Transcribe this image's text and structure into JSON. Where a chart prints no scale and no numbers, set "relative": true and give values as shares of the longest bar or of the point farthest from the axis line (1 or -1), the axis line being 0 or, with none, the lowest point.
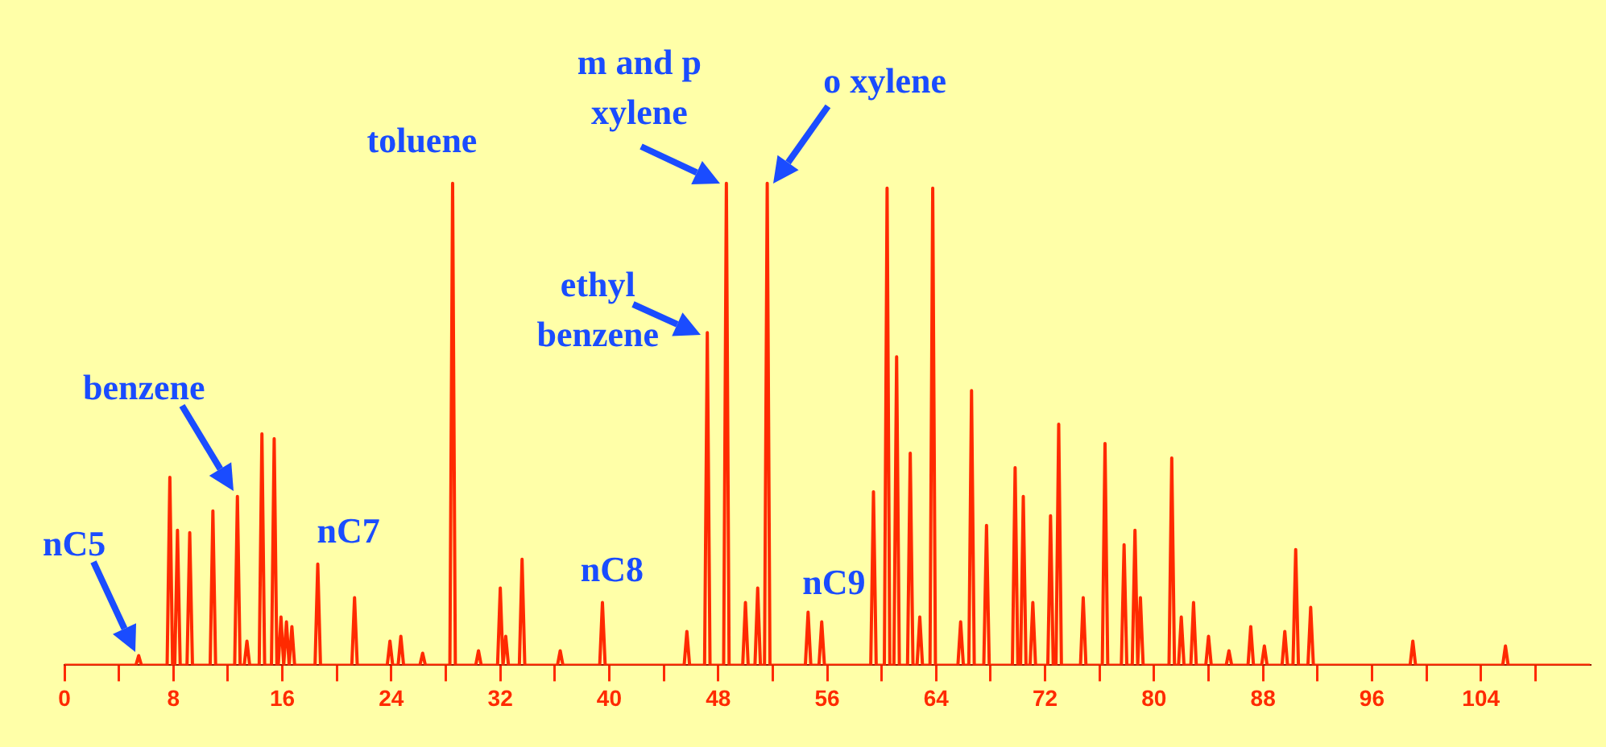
{
  "chart_data": {
    "type": "line",
    "relative": true,
    "color": "#ff2a00",
    "grid": false,
    "legend": false,
    "marker": "none",
    "line_style": "solid",
    "xlim": [
      0,
      112
    ],
    "xticks": [
      0,
      {
        "value": 4,
        "label": null
      },
      8,
      {
        "value": 12,
        "label": null
      },
      16,
      {
        "value": 20,
        "label": null
      },
      24,
      {
        "value": 28,
        "label": null
      },
      32,
      {
        "value": 36,
        "label": null
      },
      40,
      {
        "value": 44,
        "label": null
      },
      48,
      {
        "value": 52,
        "label": null
      },
      56,
      {
        "value": 60,
        "label": null
      },
      64,
      {
        "value": 68,
        "label": null
      },
      72,
      {
        "value": 76,
        "label": null
      },
      80,
      {
        "value": 84,
        "label": null
      },
      88,
      {
        "value": 92,
        "label": null
      },
      96,
      {
        "value": 100,
        "label": null
      },
      104,
      {
        "value": 108,
        "label": null
      }
    ],
    "x": [
      0,
      5.25,
      5.45,
      5.65,
      7.54,
      7.74,
      7.94,
      8.1,
      8.3,
      8.5,
      9,
      9.2,
      9.4,
      10.7,
      10.9,
      11.1,
      12.5,
      12.7,
      12.9,
      13.2,
      13.4,
      13.6,
      14.3,
      14.5,
      14.7,
      15.2,
      15.4,
      15.6,
      15.7,
      15.9,
      16.1,
      16.3,
      16.5,
      16.7,
      16.9,
      18.4,
      18.6,
      18.8,
      21.1,
      21.3,
      21.5,
      23.7,
      23.9,
      24.1,
      24.5,
      24.7,
      24.9,
      26.1,
      26.3,
      26.5,
      28.3,
      28.5,
      28.7,
      30.2,
      30.4,
      30.6,
      31.8,
      32,
      32.2,
      32.4,
      32.6,
      33.4,
      33.6,
      33.8,
      36.2,
      36.4,
      36.6,
      39.3,
      39.5,
      39.7,
      45.5,
      45.7,
      45.9,
      47,
      47.2,
      47.4,
      48.4,
      48.6,
      48.8,
      49.8,
      50,
      50.2,
      50.7,
      50.9,
      51.1,
      51.4,
      51.6,
      51.8,
      54.4,
      54.6,
      54.8,
      55.4,
      55.6,
      55.8,
      59.2,
      59.4,
      59.6,
      60.2,
      60.4,
      60.6,
      60.9,
      61.1,
      61.3,
      61.9,
      62.1,
      62.3,
      62.6,
      62.8,
      63,
      63.55,
      63.75,
      63.95,
      65.6,
      65.8,
      66,
      66.4,
      66.6,
      66.8,
      67.5,
      67.7,
      67.9,
      69.6,
      69.8,
      70,
      70.2,
      70.4,
      70.6,
      70.9,
      71.1,
      71.3,
      72.2,
      72.4,
      72.6,
      72.8,
      73,
      73.2,
      74.6,
      74.8,
      75,
      76.2,
      76.4,
      76.6,
      77.6,
      77.8,
      78,
      78.4,
      78.6,
      78.8,
      79,
      79.2,
      81.1,
      81.3,
      81.5,
      81.8,
      82,
      82.2,
      82.7,
      82.9,
      83.1,
      83.8,
      84,
      84.2,
      85.3,
      85.5,
      85.7,
      86.9,
      87.1,
      87.3,
      87.9,
      88.1,
      88.3,
      89.4,
      89.6,
      89.8,
      90.2,
      90.4,
      90.6,
      91.3,
      91.5,
      91.7,
      98.8,
      99,
      99.2,
      105.6,
      105.8,
      106,
      112
    ],
    "values": [
      0,
      0,
      0.02,
      0,
      0,
      0.39,
      0,
      0,
      0.28,
      0,
      0,
      0.275,
      0,
      0,
      0.32,
      0,
      0,
      0.35,
      0,
      0,
      0.05,
      0,
      0,
      0.48,
      0,
      0,
      0.47,
      0,
      0,
      0.1,
      0,
      0.09,
      0,
      0.08,
      0,
      0,
      0.21,
      0,
      0,
      0.14,
      0,
      0,
      0.05,
      0,
      0,
      0.06,
      0,
      0,
      0.025,
      0,
      0,
      1,
      0,
      0,
      0.03,
      0,
      0,
      0.16,
      0,
      0.06,
      0,
      0,
      0.22,
      0,
      0,
      0.03,
      0,
      0,
      0.13,
      0,
      0,
      0.07,
      0,
      0,
      0.69,
      0,
      0,
      1,
      0,
      0,
      0.13,
      0,
      0,
      0.16,
      0,
      0,
      1,
      0,
      0,
      0.11,
      0,
      0,
      0.09,
      0,
      0,
      0.36,
      0,
      0,
      0.99,
      0,
      0,
      0.64,
      0,
      0,
      0.44,
      0,
      0,
      0.1,
      0,
      0,
      0.99,
      0,
      0,
      0.09,
      0,
      0,
      0.57,
      0,
      0,
      0.29,
      0,
      0,
      0.41,
      0,
      0,
      0.35,
      0,
      0,
      0.13,
      0,
      0,
      0.31,
      0,
      0,
      0.5,
      0,
      0,
      0.14,
      0,
      0,
      0.46,
      0,
      0,
      0.25,
      0,
      0,
      0.28,
      0,
      0.14,
      0,
      0,
      0.43,
      0,
      0,
      0.1,
      0,
      0,
      0.13,
      0,
      0,
      0.06,
      0,
      0,
      0.03,
      0,
      0,
      0.08,
      0,
      0,
      0.04,
      0,
      0,
      0.07,
      0,
      0,
      0.24,
      0,
      0,
      0.12,
      0,
      0,
      0.05,
      0,
      0,
      0.04,
      0,
      0
    ],
    "annotations": [
      {
        "text": "nC5",
        "x": 5.45,
        "y": 0.02
      },
      {
        "text": "benzene",
        "x": 12.7,
        "y": 0.35
      },
      {
        "text": "nC7",
        "x": 18.6,
        "y": 0.21
      },
      {
        "text": "toluene",
        "x": 28.5,
        "y": 1
      },
      {
        "text": "ethyl benzene",
        "x": 47.2,
        "y": 0.69
      },
      {
        "text": "m and p xylene",
        "x": 48.6,
        "y": 1
      },
      {
        "text": "o xylene",
        "x": 51.6,
        "y": 1
      },
      {
        "text": "nC8",
        "x": 39.5,
        "y": 0.13
      },
      {
        "text": "nC9",
        "x": 54.6,
        "y": 0.11
      }
    ]
  }
}
